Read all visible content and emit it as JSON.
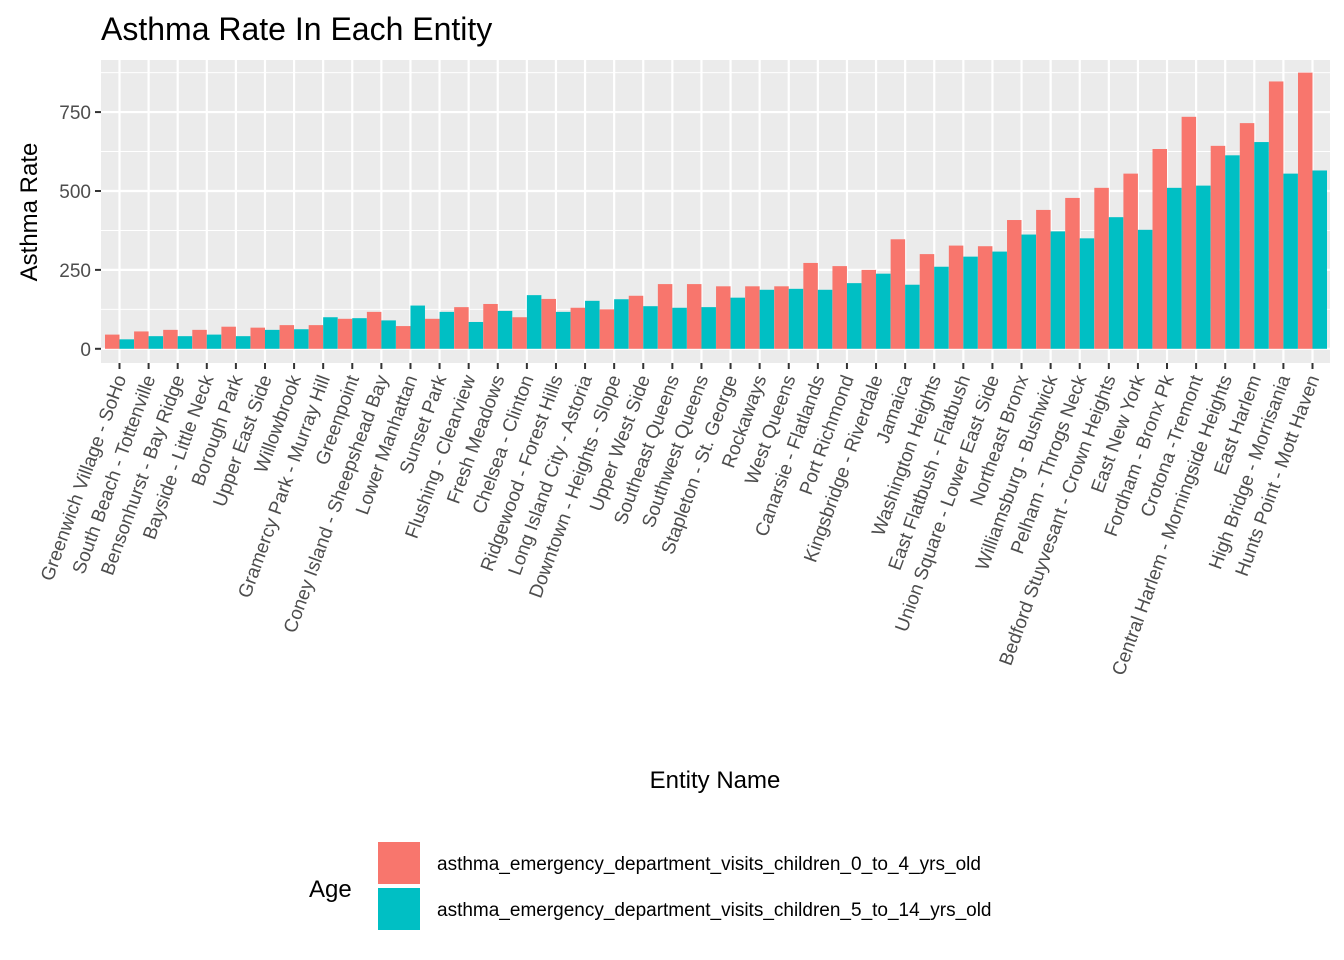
{
  "chart_data": {
    "type": "bar",
    "title": "Asthma Rate In Each Entity",
    "xlabel": "Entity Name",
    "ylabel": "Asthma Rate",
    "ylim": [
      -45,
      915
    ],
    "yticks": [
      0,
      250,
      500,
      750
    ],
    "grid": true,
    "legend_position": "bottom",
    "legend_title": "Age",
    "categories": [
      "Greenwich Village - SoHo",
      "South Beach - Tottenville",
      "Bensonhurst - Bay Ridge",
      "Bayside - Little Neck",
      "Borough Park",
      "Upper East Side",
      "Willowbrook",
      "Gramercy Park - Murray Hill",
      "Greenpoint",
      "Coney Island - Sheepshead Bay",
      "Lower Manhattan",
      "Sunset Park",
      "Flushing - Clearview",
      "Fresh Meadows",
      "Chelsea - Clinton",
      "Ridgewood - Forest Hills",
      "Long Island City - Astoria",
      "Downtown - Heights - Slope",
      "Upper West Side",
      "Southeast Queens",
      "Southwest Queens",
      "Stapleton - St. George",
      "Rockaways",
      "West Queens",
      "Canarsie - Flatlands",
      "Port Richmond",
      "Kingsbridge - Riverdale",
      "Jamaica",
      "Washington Heights",
      "East Flatbush - Flatbush",
      "Union Square - Lower East Side",
      "Northeast Bronx",
      "Williamsburg - Bushwick",
      "Pelham - Throgs Neck",
      "Bedford Stuyvesant - Crown Heights",
      "East New York",
      "Fordham - Bronx Pk",
      "Crotona -Tremont",
      "Central Harlem - Morningside Heights",
      "East Harlem",
      "High Bridge - Morrisania",
      "Hunts Point - Mott Haven"
    ],
    "series": [
      {
        "name": "asthma_emergency_department_visits_children_0_to_4_yrs_old",
        "color": "#F8766D",
        "values": [
          45,
          55,
          60,
          60,
          70,
          67,
          75,
          75,
          95,
          117,
          72,
          95,
          132,
          142,
          100,
          158,
          130,
          125,
          168,
          205,
          205,
          198,
          198,
          198,
          272,
          262,
          250,
          347,
          300,
          327,
          325,
          408,
          440,
          478,
          510,
          555,
          633,
          735,
          643,
          715,
          847,
          875
        ]
      },
      {
        "name": "asthma_emergency_department_visits_children_5_to_14_yrs_old",
        "color": "#00BFC4",
        "values": [
          30,
          40,
          40,
          45,
          40,
          60,
          62,
          100,
          97,
          90,
          137,
          117,
          85,
          120,
          170,
          117,
          152,
          157,
          135,
          130,
          132,
          162,
          187,
          190,
          187,
          208,
          238,
          203,
          260,
          292,
          308,
          362,
          372,
          350,
          417,
          377,
          510,
          517,
          613,
          655,
          555,
          565
        ]
      }
    ]
  }
}
